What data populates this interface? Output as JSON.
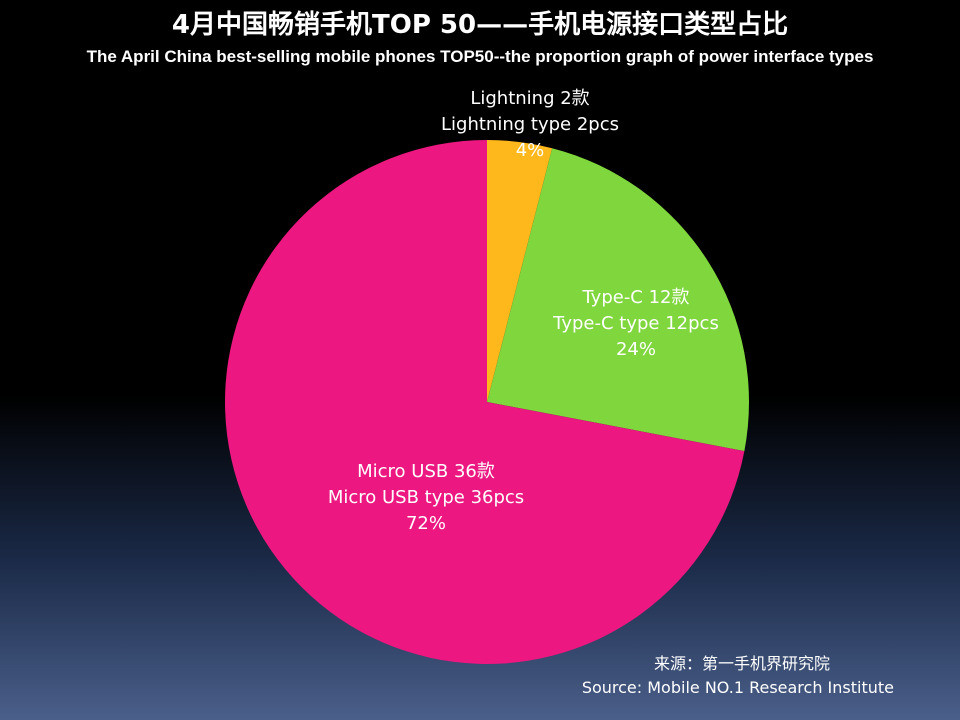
{
  "header": {
    "title_zh": "4月中国畅销手机TOP 50——手机电源接口类型占比",
    "title_en": "The April China best-selling mobile phones TOP50--the proportion graph of power interface types"
  },
  "chart_data": {
    "type": "pie",
    "title": "4月中国畅销手机TOP 50——手机电源接口类型占比",
    "subtitle": "The April China best-selling mobile phones TOP50--the proportion graph of power interface types",
    "start_angle_deg": 0,
    "direction": "clockwise",
    "slices": [
      {
        "name": "Lightning",
        "count": 2,
        "percent": 4,
        "color": "#FFB81C",
        "label_lines": [
          "Lightning 2款",
          "Lightning type 2pcs",
          "4%"
        ]
      },
      {
        "name": "Type-C",
        "count": 12,
        "percent": 24,
        "color": "#7FD63D",
        "label_lines": [
          "Type-C 12款",
          "Type-C type 12pcs",
          "24%"
        ]
      },
      {
        "name": "Micro USB",
        "count": 36,
        "percent": 72,
        "color": "#EC1780",
        "label_lines": [
          "Micro USB 36款",
          "Micro USB type 36pcs",
          "72%"
        ]
      }
    ]
  },
  "source": {
    "zh": "来源：第一手机界研究院",
    "en": "Source: Mobile NO.1 Research Institute"
  }
}
